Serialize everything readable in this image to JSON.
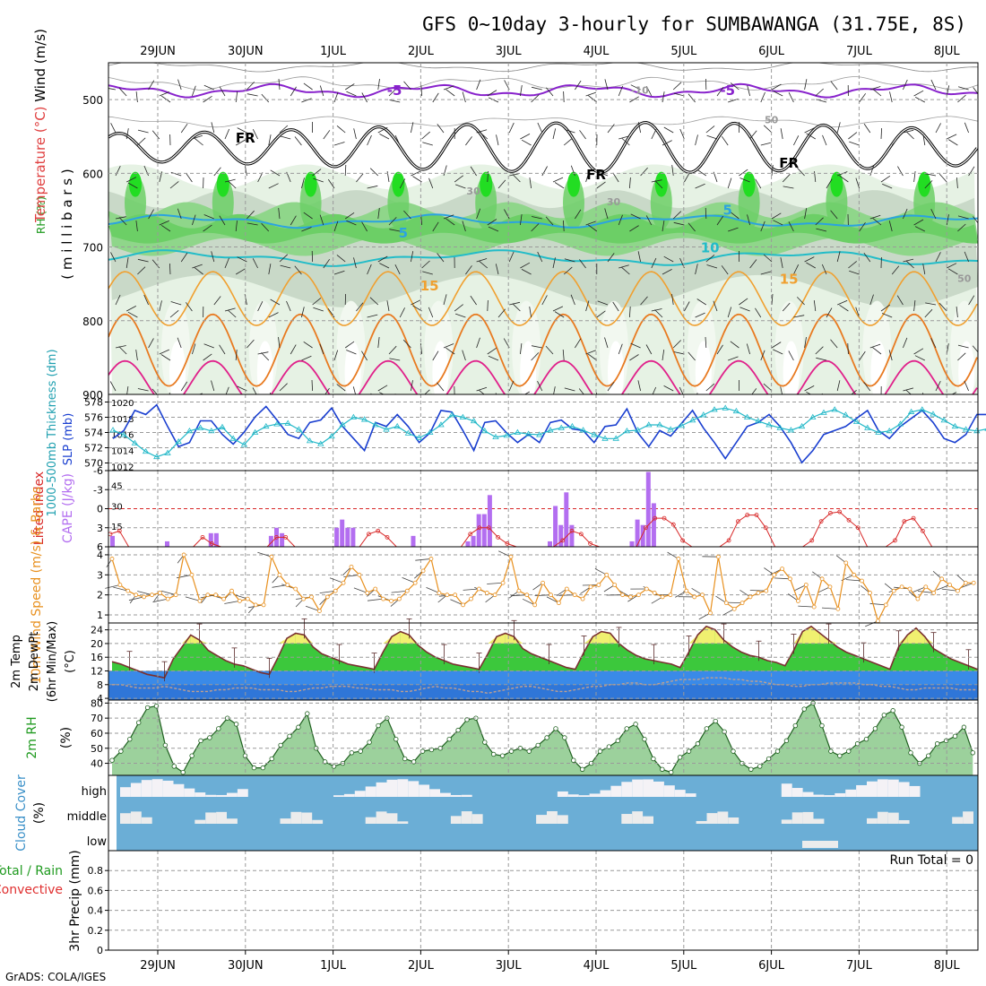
{
  "title": "GFS 0~10day 3-hourly for SUMBAWANGA (31.75E, 8S)",
  "footer": "GrADS: COLA/IGES",
  "dates": [
    "29JUN",
    "30JUN",
    "1JUL",
    "2JUL",
    "3JUL",
    "4JUL",
    "5JUL",
    "6JUL",
    "7JUL",
    "8JUL"
  ],
  "colors": {
    "slp": "#1a3fd0",
    "thickness": "#22b8c8",
    "lifted": "#d82828",
    "cape": "#b36ef0",
    "wind": "#e8901e",
    "temp_area": "#3cc83c",
    "temp_high": "#f0f070",
    "dewpt": "#3a8ae8",
    "rh_area": "#30c830",
    "cloud_bg": "#6baed6",
    "cloud_fill": "#ececec"
  },
  "chart_data": [
    {
      "id": "upper_air",
      "type": "heatmap",
      "ylabel_parts": [
        "Wind (m/s)",
        "Temperature (°C)",
        "RH (%)"
      ],
      "ylabel": "( m i l l i b a r s )",
      "yticks": [
        500,
        600,
        700,
        800,
        900
      ],
      "ylim": [
        450,
        900
      ],
      "contour_labels": [
        {
          "text": "-5",
          "x": 2.7,
          "p": 488,
          "kind": "temp_cold"
        },
        {
          "text": "-5",
          "x": 6.5,
          "p": 488,
          "kind": "temp_cold"
        },
        {
          "text": "FR",
          "x": 1.0,
          "p": 552,
          "kind": "freeze"
        },
        {
          "text": "FR",
          "x": 5.0,
          "p": 602,
          "kind": "freeze"
        },
        {
          "text": "FR",
          "x": 7.2,
          "p": 586,
          "kind": "freeze"
        },
        {
          "text": "5",
          "x": 2.8,
          "p": 681,
          "kind": "temp_cool"
        },
        {
          "text": "5",
          "x": 6.5,
          "p": 650,
          "kind": "temp_cool"
        },
        {
          "text": "10",
          "x": 6.3,
          "p": 701,
          "kind": "temp_mild"
        },
        {
          "text": "15",
          "x": 3.1,
          "p": 753,
          "kind": "temp_warm"
        },
        {
          "text": "15",
          "x": 7.2,
          "p": 744,
          "kind": "temp_warm"
        },
        {
          "text": "-10",
          "x": 5.5,
          "p": 486,
          "kind": "temp_gray"
        },
        {
          "text": "50",
          "x": 7.0,
          "p": 526,
          "kind": "rh_gray"
        },
        {
          "text": "30",
          "x": 3.6,
          "p": 623,
          "kind": "rh_gray"
        },
        {
          "text": "30",
          "x": 5.2,
          "p": 637,
          "kind": "rh_gray"
        },
        {
          "text": "50",
          "x": 9.2,
          "p": 741,
          "kind": "rh_gray"
        }
      ]
    },
    {
      "id": "slp_thickness",
      "type": "line",
      "ylabel_parts": [
        "1000-500mb Thickness (dm)",
        "SLP (mb)"
      ],
      "left_ticks": [
        570,
        572,
        574,
        576,
        578
      ],
      "left_lim": [
        569,
        579
      ],
      "right_ticks": [
        1012,
        1014,
        1016,
        1018,
        1020
      ],
      "right_lim": [
        1011.5,
        1021
      ],
      "series": [
        {
          "name": "SLP",
          "axis": "right",
          "values": [
            1015.5,
            1016.5,
            1019.0,
            1018.5,
            1019.7,
            1017.0,
            1014.5,
            1015.0,
            1017.7,
            1017.7,
            1016.0,
            1014.8,
            1016.3,
            1018.2,
            1019.5,
            1017.8,
            1016.0,
            1015.5,
            1017.5,
            1017.8,
            1019.3,
            1017.0,
            1015.5,
            1014.0,
            1017.5,
            1017.0,
            1018.5,
            1017.0,
            1015.0,
            1016.2,
            1019.0,
            1018.8,
            1016.5,
            1014.0,
            1017.5,
            1017.7,
            1016.2,
            1015.0,
            1016.0,
            1015.0,
            1017.5,
            1017.8,
            1016.7,
            1016.5,
            1015.0,
            1017.0,
            1017.2,
            1019.2,
            1016.2,
            1014.5,
            1016.5,
            1015.8,
            1017.4,
            1019.0,
            1016.8,
            1015.0,
            1013.0,
            1015.0,
            1017.0,
            1017.5,
            1018.5,
            1017.0,
            1015.0,
            1012.5,
            1014.0,
            1016.0,
            1016.5,
            1017.0,
            1018.0,
            1019.0,
            1016.5,
            1015.5,
            1017.0,
            1018.0,
            1019.0,
            1017.5,
            1015.5,
            1015.0,
            1016.0,
            1018.5,
            1018.5,
            1016.5,
            1015.0,
            1013.0,
            1016.5,
            1017.0,
            1017.5,
            1018.0,
            1018.0
          ]
        },
        {
          "name": "Thickness",
          "axis": "left",
          "values": [
            574.3,
            573.7,
            572.6,
            571.5,
            570.8,
            571.3,
            572.8,
            574.2,
            574.6,
            574.2,
            574.7,
            573.2,
            572.4,
            574.0,
            574.8,
            575.1,
            575.2,
            574.4,
            572.9,
            572.5,
            573.5,
            575.0,
            576.0,
            575.7,
            575.0,
            574.4,
            574.8,
            573.9,
            573.3,
            574.0,
            575.0,
            576.3,
            576.0,
            575.5,
            574.2,
            573.4,
            573.6,
            574.0,
            573.8,
            573.7,
            574.3,
            574.6,
            574.8,
            574.3,
            573.7,
            573.2,
            573.2,
            574.2,
            574.3,
            575.0,
            575.0,
            574.4,
            574.9,
            575.6,
            576.3,
            577.0,
            577.2,
            576.8,
            576.0,
            575.5,
            575.0,
            574.6,
            574.3,
            574.8,
            576.0,
            576.6,
            577.0,
            576.3,
            575.4,
            574.6,
            574.0,
            574.2,
            575.1,
            576.7,
            577.0,
            576.4,
            575.6,
            574.8,
            574.4,
            574.2,
            574.5,
            574.7,
            574.0,
            573.1,
            573.1,
            574.1,
            575.0,
            574.4,
            574.5,
            575.1,
            574.0
          ]
        }
      ]
    },
    {
      "id": "cape_li",
      "type": "bar",
      "ylabel_parts": [
        "Lifted Index",
        "CAPE (J/kg)"
      ],
      "left_ticks": [
        -6,
        -3,
        0,
        3,
        6
      ],
      "left_lim": [
        -6,
        6
      ],
      "right_ticks": [
        15,
        30,
        45
      ],
      "right_lim": [
        0,
        56
      ],
      "series": [
        {
          "name": "CAPE",
          "values": [
            8,
            0,
            0,
            0,
            0,
            0,
            0,
            0,
            0,
            0,
            4,
            0,
            0,
            0,
            0,
            0,
            0,
            0,
            10,
            10,
            0,
            0,
            0,
            0,
            0,
            0,
            0,
            0,
            0,
            8,
            14,
            10,
            0,
            0,
            0,
            0,
            0,
            0,
            0,
            0,
            0,
            14,
            20,
            14,
            14,
            0,
            0,
            0,
            0,
            0,
            0,
            0,
            0,
            0,
            0,
            8,
            0,
            0,
            0,
            0,
            0,
            0,
            0,
            0,
            0,
            4,
            8,
            24,
            24,
            38,
            0,
            0,
            0,
            0,
            0,
            0,
            0,
            0,
            0,
            0,
            4,
            30,
            16,
            40,
            16,
            0,
            0,
            0,
            0,
            0,
            0,
            0,
            0,
            0,
            0,
            4,
            20,
            16,
            55,
            32,
            0,
            0,
            0,
            0,
            0,
            0,
            0,
            0,
            0,
            0,
            0,
            0,
            0,
            0,
            0,
            0,
            0,
            0,
            0,
            0,
            0,
            0,
            0,
            0,
            0,
            0,
            0,
            0,
            0,
            0,
            0,
            0,
            0,
            0,
            0,
            0,
            0,
            0,
            0,
            0,
            0,
            0,
            0,
            0,
            0,
            0,
            0,
            0,
            0,
            0,
            0,
            0,
            0,
            0,
            0,
            0
          ]
        },
        {
          "name": "Lifted Index",
          "values": [
            4.0,
            3.5,
            6.5,
            8.0,
            8.5,
            8.0,
            7.8,
            7.6,
            7.5,
            6.5,
            4.5,
            5.5,
            8.0,
            8.5,
            8.5,
            8.3,
            8.1,
            7.9,
            4.5,
            4.5,
            6.0,
            8.0,
            8.2,
            8.3,
            8.1,
            8.0,
            8.0,
            6.5,
            4.0,
            3.5,
            4.5,
            6.0,
            8.0,
            8.5,
            8.2,
            8.0,
            7.8,
            7.6,
            6.5,
            4.0,
            3.0,
            3.0,
            4.5,
            5.5,
            7.5,
            8.5,
            8.4,
            8.2,
            7.5,
            5.0,
            3.5,
            4.0,
            5.5,
            7.0,
            8.5,
            8.4,
            8.2,
            6.0,
            3.0,
            1.5,
            1.5,
            2.5,
            5.0,
            7.0,
            8.0,
            8.0,
            7.0,
            5.0,
            2.0,
            1.0,
            1.0,
            3.0,
            6.0,
            8.0,
            7.5,
            7.0,
            5.0,
            2.0,
            0.7,
            0.5,
            1.8,
            3.0,
            6.5,
            8.0,
            7.8,
            5.0,
            2.0,
            1.5,
            3.5,
            6.5,
            7.5,
            7.0,
            6.5,
            8.0
          ]
        }
      ]
    },
    {
      "id": "wind10m",
      "type": "line",
      "ylabel_parts": [
        "10m Wind Speed (m/s) & Barbs"
      ],
      "yticks": [
        1,
        2,
        3,
        4
      ],
      "ylim": [
        0.6,
        4.4
      ],
      "values": [
        3.8,
        2.5,
        2.2,
        2.0,
        1.9,
        2.0,
        2.1,
        1.8,
        2.0,
        4.0,
        3.0,
        1.7,
        2.0,
        2.0,
        1.8,
        2.2,
        1.7,
        1.8,
        1.5,
        1.5,
        3.9,
        3.0,
        2.5,
        2.3,
        1.8,
        1.9,
        1.2,
        1.9,
        2.2,
        2.6,
        3.4,
        3.0,
        2.1,
        2.3,
        1.8,
        1.7,
        1.8,
        2.2,
        2.6,
        3.2,
        3.8,
        2.1,
        2.0,
        2.0,
        1.5,
        1.8,
        2.3,
        2.1,
        2.0,
        2.6,
        3.9,
        2.2,
        2.0,
        1.5,
        2.6,
        2.0,
        1.6,
        2.3,
        2.0,
        1.8,
        2.4,
        2.5,
        3.0,
        2.5,
        2.0,
        1.9,
        2.0,
        2.3,
        2.1,
        1.9,
        2.0,
        3.8,
        2.2,
        1.9,
        2.0,
        1.1,
        3.9,
        1.6,
        1.3,
        1.6,
        1.9,
        2.1,
        2.2,
        3.0,
        3.3,
        2.8,
        1.7,
        2.5,
        1.4,
        2.8,
        2.4,
        1.3,
        3.6,
        3.0,
        2.7,
        2.1,
        0.7,
        1.5,
        2.2,
        2.4,
        2.3,
        1.8,
        2.4,
        2.1,
        2.8,
        2.5,
        2.2,
        2.6,
        2.6
      ]
    },
    {
      "id": "temp2m",
      "type": "area",
      "ylabel_parts": [
        "2m Temp",
        "2m DewPt",
        "(6hr Min/Max)",
        "(°C)"
      ],
      "yticks": [
        4,
        8,
        12,
        16,
        20,
        24
      ],
      "ylim": [
        3.5,
        26
      ],
      "series": [
        {
          "name": "Temperature",
          "values": [
            14.7,
            14.0,
            13.0,
            12.0,
            11.0,
            10.5,
            10.0,
            15.5,
            19.0,
            22.5,
            21.0,
            18.0,
            16.5,
            15.0,
            14.0,
            13.5,
            12.5,
            11.5,
            11.0,
            16.0,
            21.5,
            23.0,
            22.5,
            19.0,
            17.0,
            16.0,
            15.0,
            14.0,
            13.5,
            13.0,
            12.5,
            17.5,
            22.0,
            23.5,
            22.5,
            19.5,
            17.5,
            16.0,
            15.0,
            14.0,
            13.5,
            13.0,
            12.5,
            17.0,
            22.0,
            23.0,
            22.0,
            18.5,
            17.0,
            16.0,
            15.0,
            14.0,
            13.0,
            12.5,
            17.5,
            22.0,
            23.5,
            23.0,
            20.0,
            18.0,
            16.5,
            15.5,
            15.0,
            14.5,
            14.0,
            13.0,
            17.5,
            22.5,
            25.0,
            24.0,
            21.0,
            19.0,
            17.5,
            16.5,
            16.0,
            15.0,
            14.5,
            13.5,
            18.0,
            23.5,
            25.0,
            23.0,
            21.0,
            19.0,
            17.5,
            16.5,
            15.5,
            14.5,
            13.5,
            12.5,
            19.0,
            22.5,
            24.5,
            22.0,
            18.5,
            17.0,
            15.5,
            14.5,
            13.5,
            12.5,
            11.5,
            18.0
          ]
        },
        {
          "name": "Dew Point",
          "values": [
            8.0,
            8.0,
            7.5,
            7.0,
            7.0,
            7.0,
            7.5,
            7.0,
            6.5,
            6.0,
            6.0,
            6.0,
            6.5,
            6.5,
            7.0,
            7.0,
            7.0,
            6.5,
            6.5,
            6.5,
            6.0,
            6.0,
            6.5,
            7.0,
            7.0,
            7.5,
            7.5,
            7.5,
            7.0,
            7.0,
            6.5,
            6.5,
            6.5,
            6.0,
            6.0,
            6.5,
            7.0,
            7.5,
            7.0,
            7.0,
            6.5,
            6.0,
            6.0,
            5.5,
            6.0,
            6.5,
            7.0,
            7.5,
            7.5,
            7.0,
            6.5,
            6.0,
            6.0,
            6.5,
            7.0,
            7.5,
            7.5,
            8.0,
            8.0,
            8.5,
            8.5,
            8.0,
            8.0,
            8.5,
            9.0,
            9.5,
            9.5,
            9.5,
            10.0,
            10.0,
            10.0,
            9.5,
            9.5,
            9.0,
            9.0,
            8.5,
            8.0,
            8.0,
            7.5,
            7.5,
            8.0,
            8.0,
            8.5,
            8.5,
            8.5,
            8.5,
            8.0,
            8.0,
            7.5,
            7.5,
            7.0,
            6.5,
            6.5,
            7.0,
            7.0,
            7.0,
            7.0,
            6.5,
            6.5,
            6.5,
            6.5,
            7.0
          ]
        }
      ]
    },
    {
      "id": "rh2m",
      "type": "area",
      "ylabel_parts": [
        "2m RH",
        "(%)"
      ],
      "yticks": [
        40,
        50,
        60,
        70,
        80
      ],
      "ylim": [
        32,
        82
      ],
      "values": [
        42,
        48,
        56,
        67,
        77,
        78,
        52,
        38,
        34,
        45,
        55,
        57,
        63,
        70,
        66,
        45,
        37,
        37,
        43,
        52,
        58,
        64,
        73,
        50,
        41,
        38,
        40,
        47,
        48,
        54,
        65,
        70,
        56,
        43,
        41,
        48,
        49,
        50,
        56,
        62,
        69,
        70,
        54,
        46,
        45,
        48,
        50,
        48,
        52,
        57,
        63,
        57,
        42,
        36,
        40,
        48,
        51,
        55,
        63,
        66,
        56,
        43,
        36,
        34,
        44,
        48,
        53,
        63,
        68,
        61,
        48,
        40,
        36,
        38,
        43,
        48,
        55,
        65,
        76,
        80,
        65,
        48,
        45,
        48,
        53,
        56,
        63,
        72,
        75,
        64,
        47,
        40,
        45,
        53,
        55,
        58,
        64,
        47
      ]
    },
    {
      "id": "cloud",
      "type": "area",
      "ylabel_parts": [
        "Cloud Cover",
        "(%)"
      ],
      "row_labels": [
        "high",
        "middle",
        "low"
      ]
    },
    {
      "id": "precip",
      "type": "bar",
      "ylabel_parts": [
        "Total / Rain",
        "Convective",
        "3hr Precip (mm)"
      ],
      "yticks": [
        0,
        0.2,
        0.4,
        0.6,
        0.8
      ],
      "ylim": [
        0,
        1.0
      ],
      "run_total": "Run Total = 0",
      "values": []
    }
  ]
}
